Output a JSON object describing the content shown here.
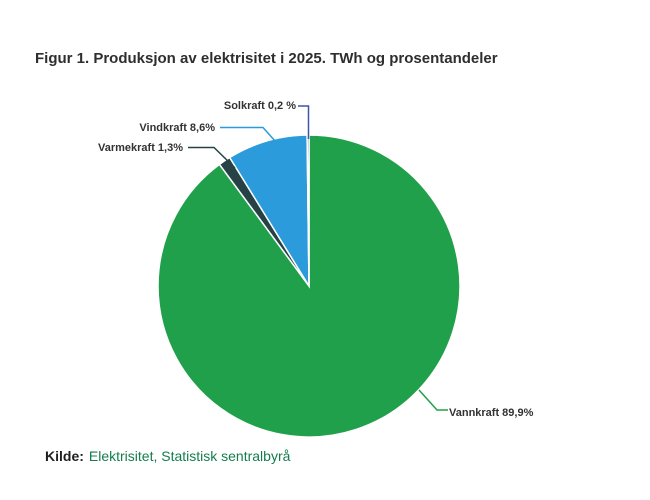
{
  "title": "Figur 1. Produksjon av elektrisitet i 2025. TWh og prosentandeler",
  "source": {
    "prefix": "Kilde:",
    "text": "Elektrisitet, Statistisk sentralbyrå",
    "link_color": "#147D4D"
  },
  "chart_data": {
    "type": "pie",
    "title": "Figur 1. Produksjon av elektrisitet i 2025. TWh og prosentandeler",
    "unit": "percent",
    "start_angle_deg": -90,
    "direction": "clockwise",
    "slice_border_color": "#ffffff",
    "series": [
      {
        "id": "vannkraft",
        "name": "Vannkraft",
        "value": 89.9,
        "label": "Vannkraft 89,9%",
        "color": "#21A04C"
      },
      {
        "id": "varmekraft",
        "name": "Varmekraft",
        "value": 1.3,
        "label": "Varmekraft 1,3%",
        "color": "#274247"
      },
      {
        "id": "vindkraft",
        "name": "Vindkraft",
        "value": 8.6,
        "label": "Vindkraft 8,6%",
        "color": "#2B9BDB"
      },
      {
        "id": "solkraft",
        "name": "Solkraft",
        "value": 0.2,
        "label": "Solkraft 0,2 %",
        "color": "#3F57A6"
      }
    ],
    "legend": "none",
    "labels_style": "external-callouts"
  }
}
